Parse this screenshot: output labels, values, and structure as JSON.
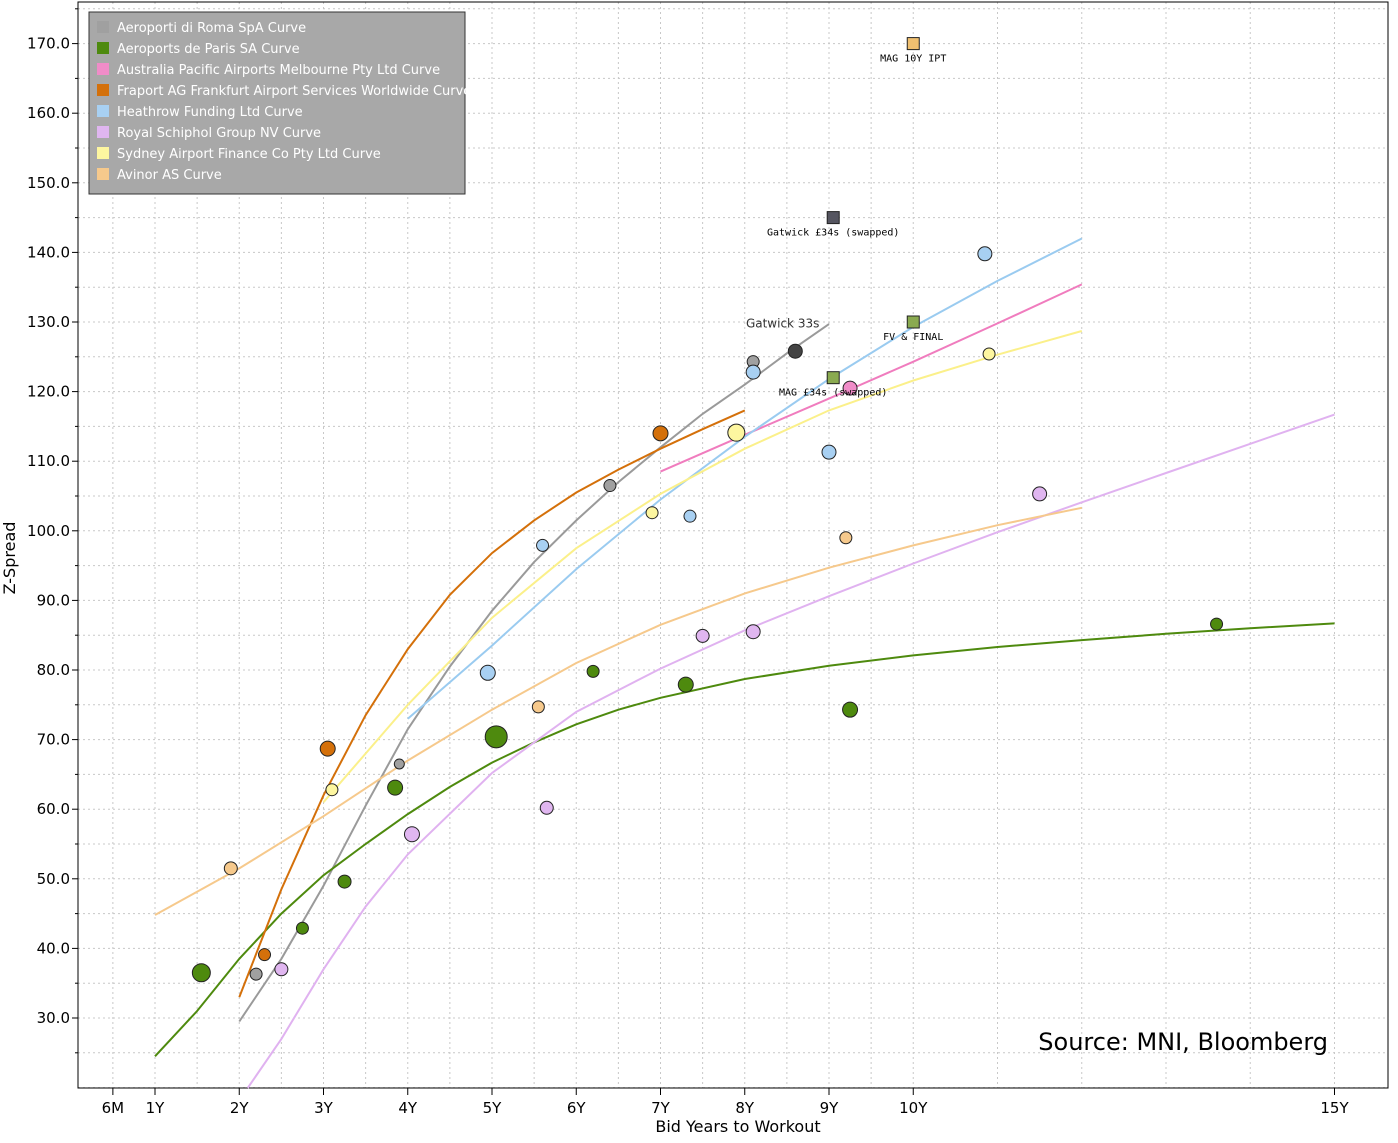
{
  "chart_data": {
    "type": "scatter",
    "title": "",
    "xlabel": "Bid Years to Workout",
    "ylabel": "Z-Spread",
    "xlim": [
      -0.5,
      15.5
    ],
    "ylim": [
      19.5,
      176.5
    ],
    "x_ticks": [
      {
        "value": 0.5,
        "label": "6M"
      },
      {
        "value": 1,
        "label": "1Y"
      },
      {
        "value": 2,
        "label": "2Y"
      },
      {
        "value": 3,
        "label": "3Y"
      },
      {
        "value": 4,
        "label": "4Y"
      },
      {
        "value": 5,
        "label": "5Y"
      },
      {
        "value": 6,
        "label": "6Y"
      },
      {
        "value": 7,
        "label": "7Y"
      },
      {
        "value": 8,
        "label": "8Y"
      },
      {
        "value": 9,
        "label": "9Y"
      },
      {
        "value": 10,
        "label": "10Y"
      },
      {
        "value": 15,
        "label": "15Y"
      }
    ],
    "y_ticks": [
      {
        "value": 30,
        "label": "30.0"
      },
      {
        "value": 40,
        "label": "40.0"
      },
      {
        "value": 50,
        "label": "50.0"
      },
      {
        "value": 60,
        "label": "60.0"
      },
      {
        "value": 70,
        "label": "70.0"
      },
      {
        "value": 80,
        "label": "80.0"
      },
      {
        "value": 90,
        "label": "90.0"
      },
      {
        "value": 100,
        "label": "100.0"
      },
      {
        "value": 110,
        "label": "110.0"
      },
      {
        "value": 120,
        "label": "120.0"
      },
      {
        "value": 130,
        "label": "130.0"
      },
      {
        "value": 140,
        "label": "140.0"
      },
      {
        "value": 150,
        "label": "150.0"
      },
      {
        "value": 160,
        "label": "160.0"
      },
      {
        "value": 170,
        "label": "170.0"
      }
    ],
    "grid": true,
    "legend_position": "top-left",
    "series": [
      {
        "name": "Aeroporti di Roma SpA Curve",
        "color": "#a0a0a0",
        "line_color": "#9a9a9a",
        "points": [
          {
            "x": 2.2,
            "y": 36.3,
            "r": 6
          },
          {
            "x": 3.9,
            "y": 66.5,
            "r": 5
          },
          {
            "x": 6.4,
            "y": 106.5,
            "r": 6
          },
          {
            "x": 8.1,
            "y": 124.3,
            "r": 6
          },
          {
            "x": 8.6,
            "y": 125.8,
            "r": 7,
            "color": "#444444"
          }
        ],
        "curve": [
          {
            "x": 2.0,
            "y": 29.5
          },
          {
            "x": 2.5,
            "y": 38.5
          },
          {
            "x": 3.0,
            "y": 49.0
          },
          {
            "x": 3.5,
            "y": 60.5
          },
          {
            "x": 4.0,
            "y": 71.5
          },
          {
            "x": 4.5,
            "y": 80.5
          },
          {
            "x": 5.0,
            "y": 88.5
          },
          {
            "x": 5.5,
            "y": 95.5
          },
          {
            "x": 6.0,
            "y": 101.5
          },
          {
            "x": 6.5,
            "y": 107.0
          },
          {
            "x": 7.0,
            "y": 112.0
          },
          {
            "x": 7.5,
            "y": 116.8
          },
          {
            "x": 8.0,
            "y": 121.0
          },
          {
            "x": 8.5,
            "y": 125.5
          },
          {
            "x": 9.0,
            "y": 129.7
          }
        ]
      },
      {
        "name": "Aeroports de Paris SA Curve",
        "color": "#4e8a0e",
        "line_color": "#4e8a0e",
        "points": [
          {
            "x": 1.55,
            "y": 36.5,
            "r": 9
          },
          {
            "x": 2.75,
            "y": 42.9,
            "r": 6
          },
          {
            "x": 3.25,
            "y": 49.6,
            "r": 6.5
          },
          {
            "x": 3.85,
            "y": 63.1,
            "r": 7.5
          },
          {
            "x": 5.05,
            "y": 70.4,
            "r": 11
          },
          {
            "x": 6.2,
            "y": 79.8,
            "r": 6
          },
          {
            "x": 7.3,
            "y": 77.9,
            "r": 7.5
          },
          {
            "x": 9.25,
            "y": 74.3,
            "r": 7.5
          },
          {
            "x": 13.6,
            "y": 86.6,
            "r": 6
          }
        ],
        "curve": [
          {
            "x": 1.0,
            "y": 24.5
          },
          {
            "x": 1.5,
            "y": 31.0
          },
          {
            "x": 2.0,
            "y": 38.5
          },
          {
            "x": 2.5,
            "y": 45.0
          },
          {
            "x": 3.0,
            "y": 50.5
          },
          {
            "x": 3.5,
            "y": 55.0
          },
          {
            "x": 4.0,
            "y": 59.3
          },
          {
            "x": 4.5,
            "y": 63.2
          },
          {
            "x": 5.0,
            "y": 66.7
          },
          {
            "x": 5.5,
            "y": 69.6
          },
          {
            "x": 6.0,
            "y": 72.2
          },
          {
            "x": 6.5,
            "y": 74.3
          },
          {
            "x": 7.0,
            "y": 76.0
          },
          {
            "x": 8.0,
            "y": 78.7
          },
          {
            "x": 9.0,
            "y": 80.6
          },
          {
            "x": 10.0,
            "y": 82.1
          },
          {
            "x": 11.0,
            "y": 83.3
          },
          {
            "x": 12.0,
            "y": 84.3
          },
          {
            "x": 13.0,
            "y": 85.2
          },
          {
            "x": 14.0,
            "y": 86.0
          },
          {
            "x": 15.0,
            "y": 86.7
          }
        ]
      },
      {
        "name": "Australia Pacific Airports Melbourne Pty Ltd Curve",
        "color": "#f08cc8",
        "line_color": "#f07cbe",
        "points": [
          {
            "x": 9.25,
            "y": 120.5,
            "r": 7
          }
        ],
        "curve": [
          {
            "x": 7.0,
            "y": 108.5
          },
          {
            "x": 8.0,
            "y": 113.8
          },
          {
            "x": 9.0,
            "y": 119.0
          },
          {
            "x": 10.0,
            "y": 124.3
          },
          {
            "x": 11.0,
            "y": 129.8
          },
          {
            "x": 12.0,
            "y": 135.4
          }
        ]
      },
      {
        "name": "Fraport AG Frankfurt Airport Services Worldwide Curve",
        "color": "#d4700a",
        "line_color": "#d4700a",
        "points": [
          {
            "x": 2.3,
            "y": 39.1,
            "r": 6
          },
          {
            "x": 3.05,
            "y": 68.7,
            "r": 7.5
          },
          {
            "x": 7.0,
            "y": 114.0,
            "r": 7.5
          }
        ],
        "curve": [
          {
            "x": 2.0,
            "y": 33.0
          },
          {
            "x": 2.5,
            "y": 48.5
          },
          {
            "x": 3.0,
            "y": 62.0
          },
          {
            "x": 3.5,
            "y": 73.5
          },
          {
            "x": 4.0,
            "y": 83.0
          },
          {
            "x": 4.5,
            "y": 90.8
          },
          {
            "x": 5.0,
            "y": 96.8
          },
          {
            "x": 5.5,
            "y": 101.5
          },
          {
            "x": 6.0,
            "y": 105.5
          },
          {
            "x": 6.5,
            "y": 108.8
          },
          {
            "x": 7.0,
            "y": 111.8
          },
          {
            "x": 7.5,
            "y": 114.6
          },
          {
            "x": 8.0,
            "y": 117.3
          }
        ]
      },
      {
        "name": "Heathrow Funding Ltd Curve",
        "color": "#a8d0f2",
        "line_color": "#9acbf0",
        "points": [
          {
            "x": 4.95,
            "y": 79.6,
            "r": 7.5
          },
          {
            "x": 5.6,
            "y": 97.9,
            "r": 6
          },
          {
            "x": 7.35,
            "y": 102.1,
            "r": 6
          },
          {
            "x": 8.1,
            "y": 122.8,
            "r": 7
          },
          {
            "x": 9.0,
            "y": 111.3,
            "r": 7
          },
          {
            "x": 10.85,
            "y": 139.8,
            "r": 7
          }
        ],
        "curve": [
          {
            "x": 4.0,
            "y": 73.0
          },
          {
            "x": 5.0,
            "y": 83.5
          },
          {
            "x": 6.0,
            "y": 94.5
          },
          {
            "x": 7.0,
            "y": 104.5
          },
          {
            "x": 8.0,
            "y": 113.5
          },
          {
            "x": 9.0,
            "y": 121.8
          },
          {
            "x": 10.0,
            "y": 129.3
          },
          {
            "x": 11.0,
            "y": 135.9
          },
          {
            "x": 12.0,
            "y": 142.0
          }
        ]
      },
      {
        "name": "Royal Schiphol Group NV Curve",
        "color": "#e0b6f0",
        "line_color": "#e0b2f0",
        "points": [
          {
            "x": 2.5,
            "y": 37.0,
            "r": 6.5
          },
          {
            "x": 4.05,
            "y": 56.4,
            "r": 7.5
          },
          {
            "x": 5.65,
            "y": 60.2,
            "r": 6.5
          },
          {
            "x": 7.5,
            "y": 84.9,
            "r": 6.5
          },
          {
            "x": 8.1,
            "y": 85.5,
            "r": 7
          },
          {
            "x": 11.5,
            "y": 105.3,
            "r": 7
          }
        ],
        "curve": [
          {
            "x": 2.1,
            "y": 19.5
          },
          {
            "x": 2.5,
            "y": 27.0
          },
          {
            "x": 3.0,
            "y": 37.0
          },
          {
            "x": 3.5,
            "y": 46.0
          },
          {
            "x": 4.0,
            "y": 53.5
          },
          {
            "x": 5.0,
            "y": 65.2
          },
          {
            "x": 6.0,
            "y": 74.0
          },
          {
            "x": 7.0,
            "y": 80.2
          },
          {
            "x": 8.0,
            "y": 85.7
          },
          {
            "x": 9.0,
            "y": 90.6
          },
          {
            "x": 10.0,
            "y": 95.3
          },
          {
            "x": 11.0,
            "y": 99.8
          },
          {
            "x": 12.0,
            "y": 104.1
          },
          {
            "x": 13.0,
            "y": 108.3
          },
          {
            "x": 14.0,
            "y": 112.5
          },
          {
            "x": 15.0,
            "y": 116.7
          }
        ]
      },
      {
        "name": "Sydney Airport Finance Co Pty Ltd Curve",
        "color": "#fdf6a0",
        "line_color": "#fbf08a",
        "points": [
          {
            "x": 3.1,
            "y": 62.8,
            "r": 6
          },
          {
            "x": 6.9,
            "y": 102.6,
            "r": 6
          },
          {
            "x": 7.9,
            "y": 114.1,
            "r": 8.5
          },
          {
            "x": 10.9,
            "y": 125.4,
            "r": 6
          }
        ],
        "curve": [
          {
            "x": 3.0,
            "y": 61.0
          },
          {
            "x": 4.0,
            "y": 75.0
          },
          {
            "x": 5.0,
            "y": 87.5
          },
          {
            "x": 6.0,
            "y": 97.5
          },
          {
            "x": 7.0,
            "y": 105.3
          },
          {
            "x": 8.0,
            "y": 111.8
          },
          {
            "x": 9.0,
            "y": 117.3
          },
          {
            "x": 10.0,
            "y": 121.6
          },
          {
            "x": 11.0,
            "y": 125.3
          },
          {
            "x": 12.0,
            "y": 128.7
          }
        ]
      },
      {
        "name": "Avinor AS Curve",
        "color": "#f6c98c",
        "line_color": "#f6c98c",
        "points": [
          {
            "x": 1.9,
            "y": 51.5,
            "r": 6.5
          },
          {
            "x": 5.55,
            "y": 74.7,
            "r": 6
          },
          {
            "x": 9.2,
            "y": 99.0,
            "r": 6
          }
        ],
        "curve": [
          {
            "x": 1.0,
            "y": 44.8
          },
          {
            "x": 2.0,
            "y": 51.5
          },
          {
            "x": 3.0,
            "y": 59.0
          },
          {
            "x": 4.0,
            "y": 67.0
          },
          {
            "x": 5.0,
            "y": 74.3
          },
          {
            "x": 6.0,
            "y": 81.0
          },
          {
            "x": 7.0,
            "y": 86.5
          },
          {
            "x": 8.0,
            "y": 91.0
          },
          {
            "x": 9.0,
            "y": 94.7
          },
          {
            "x": 10.0,
            "y": 97.9
          },
          {
            "x": 11.0,
            "y": 100.8
          },
          {
            "x": 12.0,
            "y": 103.3
          }
        ]
      }
    ],
    "markers": [
      {
        "x": 10.0,
        "y": 170.0,
        "shape": "square",
        "color": "#f0c070",
        "label": "MAG 10Y IPT",
        "label_dx": 0,
        "label_dy": 18
      },
      {
        "x": 9.05,
        "y": 145.0,
        "shape": "square",
        "color": "#555560",
        "label": "Gatwick £34s (swapped)",
        "label_dx": 0,
        "label_dy": 18
      },
      {
        "x": 10.0,
        "y": 130.0,
        "shape": "square",
        "color": "#8aaa50",
        "label": "FV & FINAL",
        "label_dx": 0,
        "label_dy": 18
      },
      {
        "x": 9.05,
        "y": 122.0,
        "shape": "square",
        "color": "#8aaa50",
        "label": "MAG £34s (swapped)",
        "label_dx": 0,
        "label_dy": 18
      }
    ],
    "annotations": [
      {
        "text": "Gatwick 33s",
        "x": 8.45,
        "y": 129.2
      }
    ],
    "source_note": "Source: MNI, Bloomberg"
  }
}
